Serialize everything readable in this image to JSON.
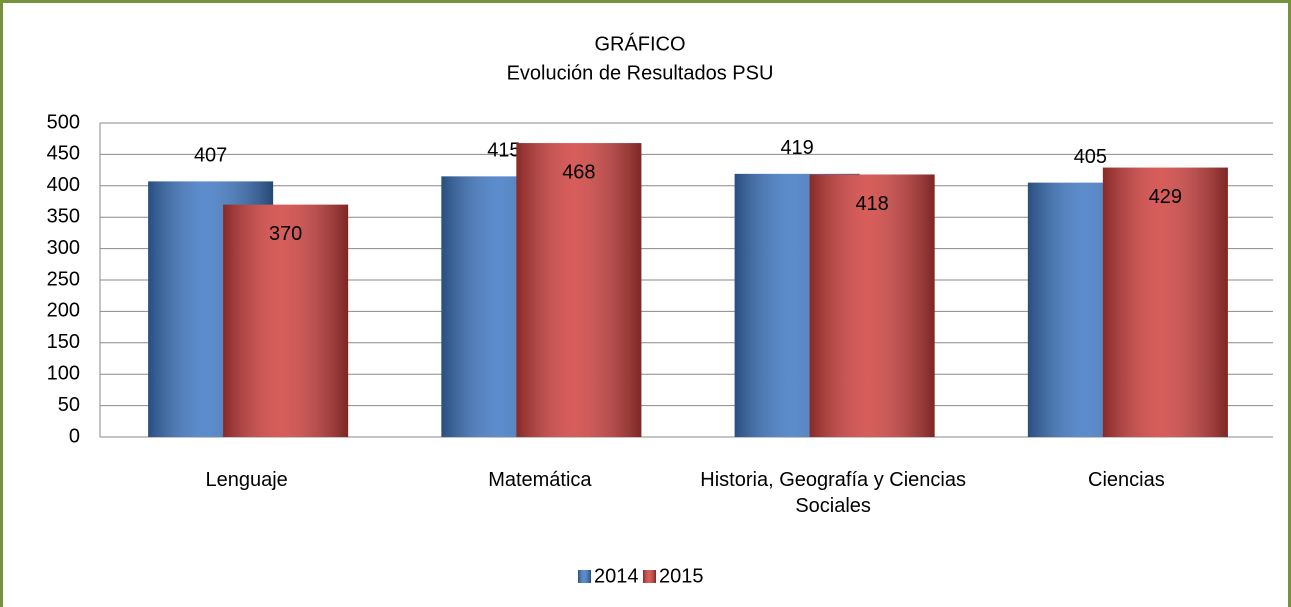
{
  "chart_data": {
    "type": "bar",
    "title": "GRÁFICO",
    "subtitle": "Evolución de Resultados PSU",
    "categories": [
      "Lenguaje",
      "Matemática",
      "Historia, Geografía y Ciencias Sociales",
      "Ciencias"
    ],
    "series": [
      {
        "name": "2014",
        "color": "#3f78c4",
        "values": [
          407,
          415,
          419,
          405
        ]
      },
      {
        "name": "2015",
        "color": "#d0403d",
        "values": [
          370,
          468,
          418,
          429
        ]
      }
    ],
    "ylim": [
      0,
      500
    ],
    "yticks": [
      0,
      50,
      100,
      150,
      200,
      250,
      300,
      350,
      400,
      450,
      500
    ],
    "grid": true,
    "legend": "bottom"
  }
}
